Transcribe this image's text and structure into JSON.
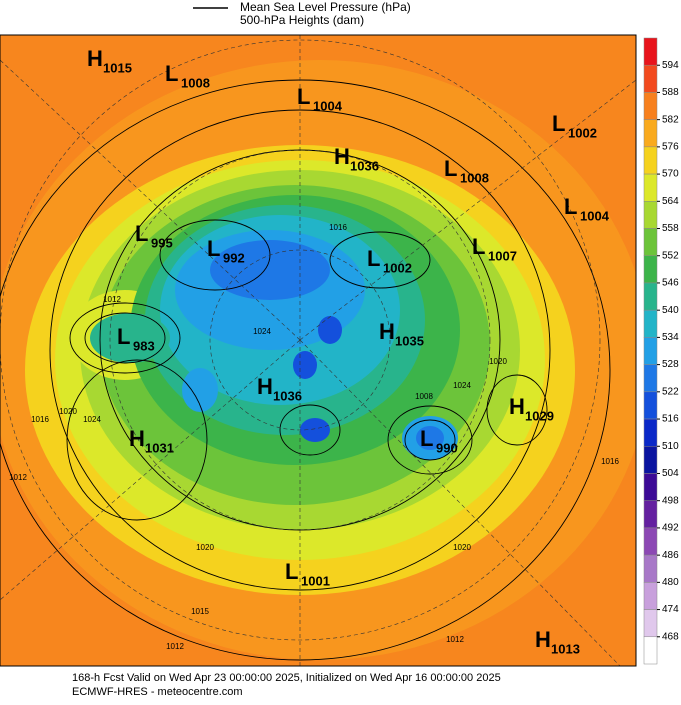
{
  "header": {
    "legend_line_label": "Mean Sea Level Pressure (hPa)",
    "subtitle": "500-hPa Heights (dam)"
  },
  "pressure_centers": [
    {
      "kind": "H",
      "value": 1015
    },
    {
      "kind": "L",
      "value": 1008
    },
    {
      "kind": "L",
      "value": 1004
    },
    {
      "kind": "L",
      "value": 1002
    },
    {
      "kind": "H",
      "value": 1036
    },
    {
      "kind": "L",
      "value": 1008
    },
    {
      "kind": "L",
      "value": 1004
    },
    {
      "kind": "L",
      "value": 995
    },
    {
      "kind": "L",
      "value": 992
    },
    {
      "kind": "L",
      "value": 1002
    },
    {
      "kind": "L",
      "value": 1007
    },
    {
      "kind": "L",
      "value": 983
    },
    {
      "kind": "H",
      "value": 1035
    },
    {
      "kind": "H",
      "value": 1036
    },
    {
      "kind": "H",
      "value": 1029
    },
    {
      "kind": "H",
      "value": 1031
    },
    {
      "kind": "L",
      "value": 990
    },
    {
      "kind": "L",
      "value": 1001
    },
    {
      "kind": "H",
      "value": 1013
    }
  ],
  "contour_labels": [
    1012,
    1016,
    1024,
    1020,
    1024,
    1008,
    1020,
    1024,
    1016,
    1012,
    1020,
    1020,
    1015,
    1012,
    1012,
    1016
  ],
  "colorbar": {
    "ticks": [
      594,
      588,
      582,
      576,
      570,
      564,
      558,
      552,
      546,
      540,
      534,
      528,
      522,
      516,
      510,
      504,
      498,
      492,
      486,
      480,
      474,
      468
    ],
    "colors": [
      "#e8141c",
      "#f24a1e",
      "#f7801e",
      "#f9aa1e",
      "#f5d21e",
      "#dce82a",
      "#a8d832",
      "#6cc43a",
      "#3cb44a",
      "#28b48c",
      "#22b4c8",
      "#22a0e6",
      "#1e78e6",
      "#1450dc",
      "#0a28c8",
      "#0a14a0",
      "#3c0a96",
      "#6420a0",
      "#8c48b4",
      "#a878c8",
      "#c8a0dc",
      "#e0c8ec",
      "#ffffff"
    ]
  },
  "footer": {
    "line1": "168-h Fcst Valid on Wed Apr 23 00:00:00 2025, Initialized on Wed Apr 16 00:00:00 2025",
    "line2": "ECMWF-HRES - meteocentre.com"
  }
}
